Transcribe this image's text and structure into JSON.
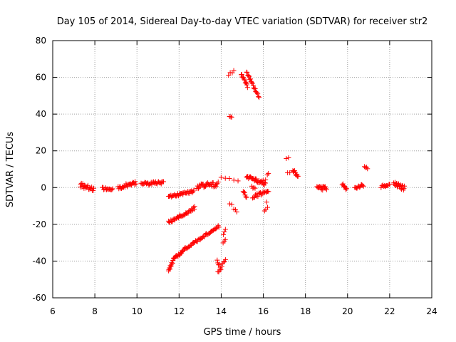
{
  "chart_data": {
    "type": "scatter",
    "title": "Day 105 of 2014, Sidereal Day-to-day VTEC variation (SDTVAR) for receiver str2",
    "xlabel": "GPS time / hours",
    "ylabel": "SDTVAR / TECUs",
    "xlim": [
      6,
      24
    ],
    "ylim": [
      -60,
      80
    ],
    "xticks": [
      "6",
      "8",
      "10",
      "12",
      "14",
      "16",
      "18",
      "20",
      "22",
      "24"
    ],
    "yticks": [
      "-60",
      "-40",
      "-20",
      "0",
      "20",
      "40",
      "60",
      "80"
    ],
    "grid": true,
    "marker": "plus",
    "color": "#ff0000",
    "segments": [
      {
        "x0": 7.3,
        "y0": 1.5,
        "x1": 7.95,
        "y1": -1.0,
        "n": 22,
        "spread": 1.2
      },
      {
        "x0": 8.35,
        "y0": -0.5,
        "x1": 8.85,
        "y1": -0.5,
        "n": 14,
        "spread": 1.0
      },
      {
        "x0": 9.1,
        "y0": 0.0,
        "x1": 9.95,
        "y1": 2.5,
        "n": 26,
        "spread": 1.0
      },
      {
        "x0": 10.2,
        "y0": 2.0,
        "x1": 11.25,
        "y1": 2.5,
        "n": 30,
        "spread": 0.9
      },
      {
        "x0": 11.5,
        "y0": -5.0,
        "x1": 12.7,
        "y1": -2.0,
        "n": 34,
        "spread": 0.7
      },
      {
        "x0": 11.5,
        "y0": -19.0,
        "x1": 12.75,
        "y1": -11.0,
        "n": 36,
        "spread": 0.8
      },
      {
        "x0": 11.5,
        "y0": -45.0,
        "x1": 11.75,
        "y1": -39.0,
        "n": 12,
        "spread": 1.0
      },
      {
        "x0": 11.75,
        "y0": -39.0,
        "x1": 12.3,
        "y1": -33.0,
        "n": 18,
        "spread": 0.8
      },
      {
        "x0": 12.3,
        "y0": -33.0,
        "x1": 13.9,
        "y1": -21.0,
        "n": 40,
        "spread": 0.8
      },
      {
        "x0": 12.85,
        "y0": 0.5,
        "x1": 13.85,
        "y1": 2.0,
        "n": 32,
        "spread": 1.3
      },
      {
        "x0": 13.8,
        "y0": -40.0,
        "x1": 13.95,
        "y1": -43.0,
        "n": 5,
        "spread": 0.8
      },
      {
        "x0": 13.85,
        "y0": -46.0,
        "x1": 14.2,
        "y1": -40.0,
        "n": 9,
        "spread": 1.0
      },
      {
        "x0": 14.1,
        "y0": -26.0,
        "x1": 14.2,
        "y1": -23.0,
        "n": 3,
        "spread": 0.5
      },
      {
        "x0": 14.1,
        "y0": -30.0,
        "x1": 14.2,
        "y1": -28.0,
        "n": 3,
        "spread": 0.5
      },
      {
        "x0": 14.0,
        "y0": 6.0,
        "x1": 14.8,
        "y1": 4.0,
        "n": 5,
        "spread": 0.6
      },
      {
        "x0": 14.35,
        "y0": 61.0,
        "x1": 14.6,
        "y1": 64.0,
        "n": 4,
        "spread": 0.6
      },
      {
        "x0": 14.4,
        "y0": 39.0,
        "x1": 14.5,
        "y1": 38.0,
        "n": 3,
        "spread": 0.4
      },
      {
        "x0": 14.4,
        "y0": -9.0,
        "x1": 14.5,
        "y1": -9.0,
        "n": 2,
        "spread": 0.3
      },
      {
        "x0": 14.6,
        "y0": -12.0,
        "x1": 14.75,
        "y1": -13.0,
        "n": 3,
        "spread": 0.4
      },
      {
        "x0": 14.95,
        "y0": 62.0,
        "x1": 15.25,
        "y1": 55.0,
        "n": 12,
        "spread": 0.6
      },
      {
        "x0": 15.2,
        "y0": 63.0,
        "x1": 15.8,
        "y1": 49.0,
        "n": 20,
        "spread": 0.6
      },
      {
        "x0": 15.05,
        "y0": -2.0,
        "x1": 15.2,
        "y1": -5.0,
        "n": 6,
        "spread": 0.8
      },
      {
        "x0": 15.2,
        "y0": 6.0,
        "x1": 16.1,
        "y1": 2.0,
        "n": 30,
        "spread": 0.9
      },
      {
        "x0": 15.5,
        "y0": -5.0,
        "x1": 16.2,
        "y1": -2.0,
        "n": 18,
        "spread": 0.9
      },
      {
        "x0": 15.45,
        "y0": 0.5,
        "x1": 15.6,
        "y1": -0.5,
        "n": 4,
        "spread": 0.5
      },
      {
        "x0": 16.2,
        "y0": 7.0,
        "x1": 16.25,
        "y1": 7.5,
        "n": 2,
        "spread": 0.3
      },
      {
        "x0": 16.0,
        "y0": 4.0,
        "x1": 16.1,
        "y1": 4.0,
        "n": 2,
        "spread": 0.3
      },
      {
        "x0": 16.05,
        "y0": -13.0,
        "x1": 16.2,
        "y1": -11.0,
        "n": 3,
        "spread": 0.4
      },
      {
        "x0": 16.15,
        "y0": -8.0,
        "x1": 16.2,
        "y1": -8.0,
        "n": 1,
        "spread": 0.2
      },
      {
        "x0": 16.25,
        "y0": -2.0,
        "x1": 16.25,
        "y1": -2.0,
        "n": 1,
        "spread": 0.2
      },
      {
        "x0": 17.1,
        "y0": 16.0,
        "x1": 17.2,
        "y1": 16.0,
        "n": 2,
        "spread": 0.3
      },
      {
        "x0": 17.15,
        "y0": 8.0,
        "x1": 17.25,
        "y1": 8.0,
        "n": 2,
        "spread": 0.3
      },
      {
        "x0": 17.4,
        "y0": 10.0,
        "x1": 17.65,
        "y1": 6.0,
        "n": 10,
        "spread": 0.8
      },
      {
        "x0": 18.55,
        "y0": 0.0,
        "x1": 19.0,
        "y1": -0.5,
        "n": 16,
        "spread": 1.2
      },
      {
        "x0": 19.75,
        "y0": 2.0,
        "x1": 19.95,
        "y1": -1.0,
        "n": 8,
        "spread": 0.6
      },
      {
        "x0": 20.35,
        "y0": 0.0,
        "x1": 20.75,
        "y1": 1.0,
        "n": 12,
        "spread": 0.9
      },
      {
        "x0": 20.8,
        "y0": 11.5,
        "x1": 20.95,
        "y1": 10.5,
        "n": 4,
        "spread": 0.4
      },
      {
        "x0": 21.6,
        "y0": 0.5,
        "x1": 22.0,
        "y1": 2.0,
        "n": 12,
        "spread": 0.8
      },
      {
        "x0": 22.2,
        "y0": 2.5,
        "x1": 22.7,
        "y1": -0.5,
        "n": 20,
        "spread": 1.4
      }
    ]
  }
}
